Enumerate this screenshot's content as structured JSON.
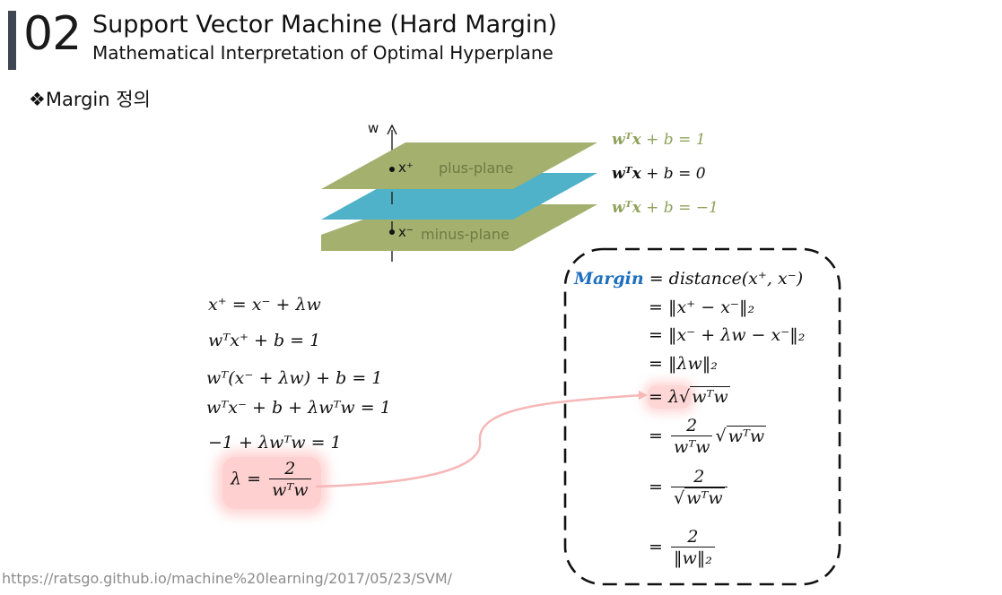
{
  "header": {
    "number": "02",
    "title": "Support Vector Machine (Hard Margin)",
    "subtitle": "Mathematical Interpretation of Optimal Hyperplane"
  },
  "section_heading": "❖Margin 정의",
  "diagram": {
    "w_label": "w",
    "x_plus": "x⁺",
    "x_minus": "x⁻",
    "plus_plane": "plus-plane",
    "minus_plane": "minus-plane",
    "colors": {
      "outer_planes": "#a4b06e",
      "middle_plane": "#4fb2c8",
      "label_green": "#8ea25a"
    },
    "equations": [
      {
        "lhs": "wᵀx",
        "rest": " + b = 1"
      },
      {
        "lhs": "wᵀx",
        "rest": " + b = 0"
      },
      {
        "lhs": "wᵀx",
        "rest": " + b = −1"
      }
    ]
  },
  "derivation": {
    "lines": [
      "x⁺ = x⁻ + λw",
      "wᵀx⁺ + b = 1",
      "wᵀ(x⁻ + λw) + b = 1",
      "wᵀx⁻ + b + λwᵀw = 1",
      "−1 + λwᵀw = 1"
    ],
    "lambda": {
      "lhs": "λ =",
      "num": "2",
      "den": "wᵀw"
    }
  },
  "margin_box": {
    "margin_word": "Margin",
    "first_rhs": " = distance(x⁺, x⁻)",
    "steps": [
      "= ‖x⁺ − x⁻‖₂",
      "= ‖x⁻ + λw − x⁻‖₂",
      "= ‖λw‖₂"
    ],
    "sqrt_step": {
      "prefix": "= λ",
      "radicand": "wᵀw"
    },
    "frac1": {
      "eq": "=",
      "num": "2",
      "den": "wᵀw",
      "radicand": "wᵀw"
    },
    "frac2": {
      "eq": "=",
      "num": "2",
      "den_radicand": "wᵀw"
    },
    "frac3": {
      "eq": "=",
      "num": "2",
      "den": "‖w‖₂"
    }
  },
  "source": "https://ratsgo.github.io/machine%20learning/2017/05/23/SVM/"
}
